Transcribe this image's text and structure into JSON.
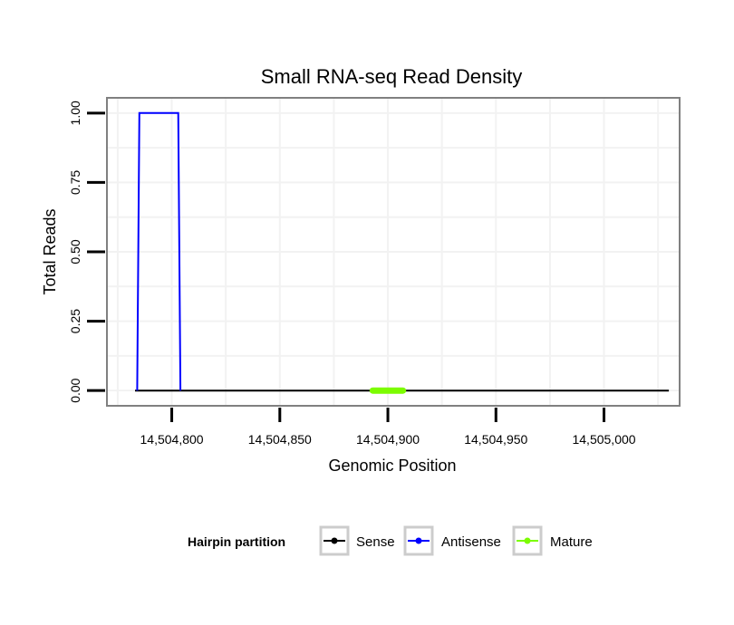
{
  "chart_data": {
    "type": "line",
    "title": "Small RNA-seq Read Density",
    "xlabel": "Genomic Position",
    "ylabel": "Total Reads",
    "xlim": [
      14504770,
      14505035
    ],
    "ylim": [
      -0.055,
      1.055
    ],
    "x_ticks": [
      14504800,
      14504850,
      14504900,
      14504950,
      14505000
    ],
    "x_tick_labels": [
      "14,504,800",
      "14,504,850",
      "14,504,900",
      "14,504,950",
      "14,505,000"
    ],
    "y_ticks": [
      0,
      0.25,
      0.5,
      0.75,
      1
    ],
    "y_tick_labels": [
      "0.00",
      "0.25",
      "0.50",
      "0.75",
      "1.00"
    ],
    "grid": true,
    "legend": {
      "title": "Hairpin partition",
      "position": "bottom",
      "entries": [
        "Sense",
        "Antisense",
        "Mature"
      ]
    },
    "series": [
      {
        "name": "Sense",
        "color": "#000000",
        "x": [
          14504783,
          14505030
        ],
        "values": [
          0,
          0
        ]
      },
      {
        "name": "Antisense",
        "color": "#0000ff",
        "x": [
          14504784,
          14504785,
          14504803,
          14504804
        ],
        "values": [
          0,
          1,
          1,
          0
        ]
      },
      {
        "name": "Mature",
        "color": "#7cfc00",
        "x": [
          14504893,
          14504907
        ],
        "values": [
          0,
          0
        ]
      }
    ]
  }
}
